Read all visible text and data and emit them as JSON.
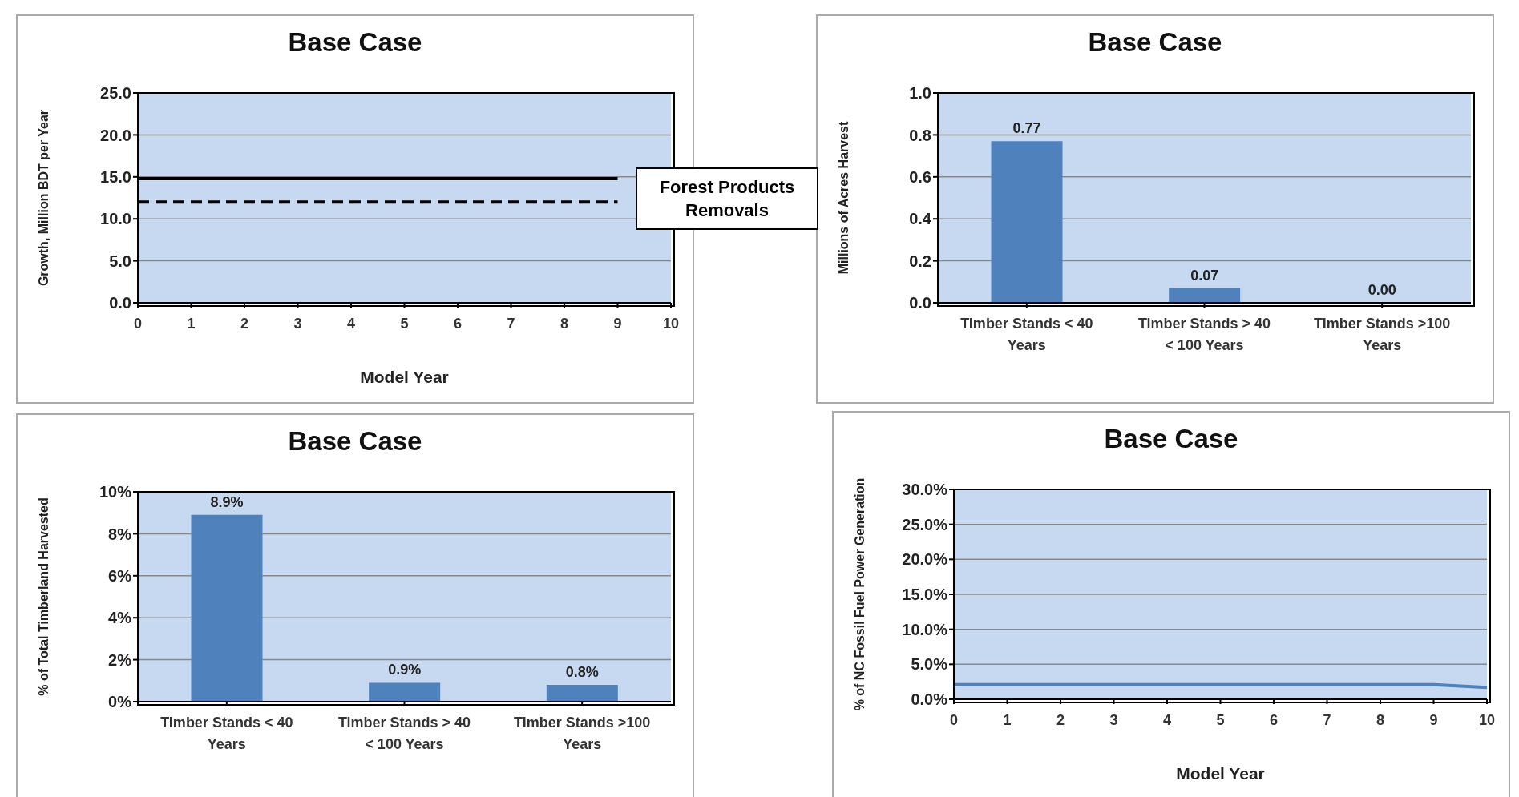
{
  "chart_data": [
    {
      "type": "line",
      "title": "Base Case",
      "xlabel": "Model Year",
      "ylabel": "Growth, Million  BDT per Year",
      "categories": [
        "0",
        "1",
        "2",
        "3",
        "4",
        "5",
        "6",
        "7",
        "8",
        "9",
        "10"
      ],
      "series": [
        {
          "color": "#000000",
          "line_style": "solid",
          "values": [
            14.8,
            14.8,
            14.8,
            14.8,
            14.8,
            14.8,
            14.8,
            14.8,
            14.8,
            14.8,
            null
          ]
        },
        {
          "color": "#000000",
          "line_style": "dashed",
          "values": [
            12.0,
            12.0,
            12.0,
            12.0,
            12.0,
            12.0,
            12.0,
            12.0,
            12.0,
            12.0,
            null
          ]
        }
      ],
      "ylim": [
        0,
        25
      ],
      "yticks": [
        {
          "value": 0,
          "label": "0.0"
        },
        {
          "value": 5,
          "label": "5.0"
        },
        {
          "value": 10,
          "label": "10.0"
        },
        {
          "value": 15,
          "label": "15.0"
        },
        {
          "value": 20,
          "label": "20.0"
        },
        {
          "value": 25,
          "label": "25.0"
        }
      ],
      "grid": "y",
      "annotations": [
        "Forest Products Removals"
      ]
    },
    {
      "type": "bar",
      "title": "Base Case",
      "ylabel": "Millions of Acres Harvest",
      "categories": [
        "Timber Stands < 40 Years",
        "Timber Stands > 40 < 100 Years",
        "Timber Stands >100 Years"
      ],
      "values": [
        0.77,
        0.07,
        0
      ],
      "value_labels": [
        "0.77",
        "0.07",
        "0.00"
      ],
      "color": "#4f81bd",
      "ylim": [
        0,
        1
      ],
      "yticks": [
        {
          "value": 0,
          "label": "0.0"
        },
        {
          "value": 0.2,
          "label": "0.2"
        },
        {
          "value": 0.4,
          "label": "0.4"
        },
        {
          "value": 0.6,
          "label": "0.6"
        },
        {
          "value": 0.8,
          "label": "0.8"
        },
        {
          "value": 1,
          "label": "1.0"
        }
      ],
      "grid": "y"
    },
    {
      "type": "bar",
      "title": "Base Case",
      "ylabel": "% of Total Timberland  Harvested",
      "categories": [
        "Timber Stands < 40 Years",
        "Timber Stands > 40 < 100 Years",
        "Timber Stands >100 Years"
      ],
      "values": [
        8.9,
        0.9,
        0.8
      ],
      "value_labels": [
        "8.9%",
        "0.9%",
        "0.8%"
      ],
      "color": "#4f81bd",
      "ylim": [
        0,
        10
      ],
      "yticks": [
        {
          "value": 0,
          "label": "0%"
        },
        {
          "value": 2,
          "label": "2%"
        },
        {
          "value": 4,
          "label": "4%"
        },
        {
          "value": 6,
          "label": "6%"
        },
        {
          "value": 8,
          "label": "8%"
        },
        {
          "value": 10,
          "label": "10%"
        }
      ],
      "grid": "y"
    },
    {
      "type": "line",
      "title": "Base Case",
      "xlabel": "Model Year",
      "ylabel": "% of NC Fossil Fuel Power Generation",
      "categories": [
        "0",
        "1",
        "2",
        "3",
        "4",
        "5",
        "6",
        "7",
        "8",
        "9",
        "10"
      ],
      "series": [
        {
          "color": "#4f81bd",
          "line_style": "solid",
          "values": [
            2.1,
            2.1,
            2.1,
            2.1,
            2.1,
            2.1,
            2.1,
            2.1,
            2.1,
            2.1,
            1.7
          ]
        }
      ],
      "ylim": [
        0,
        30
      ],
      "yticks": [
        {
          "value": 0,
          "label": "0.0%"
        },
        {
          "value": 5,
          "label": "5.0%"
        },
        {
          "value": 10,
          "label": "10.0%"
        },
        {
          "value": 15,
          "label": "15.0%"
        },
        {
          "value": 20,
          "label": "20.0%"
        },
        {
          "value": 25,
          "label": "25.0%"
        },
        {
          "value": 30,
          "label": "30.0%"
        }
      ],
      "grid": "y"
    }
  ]
}
